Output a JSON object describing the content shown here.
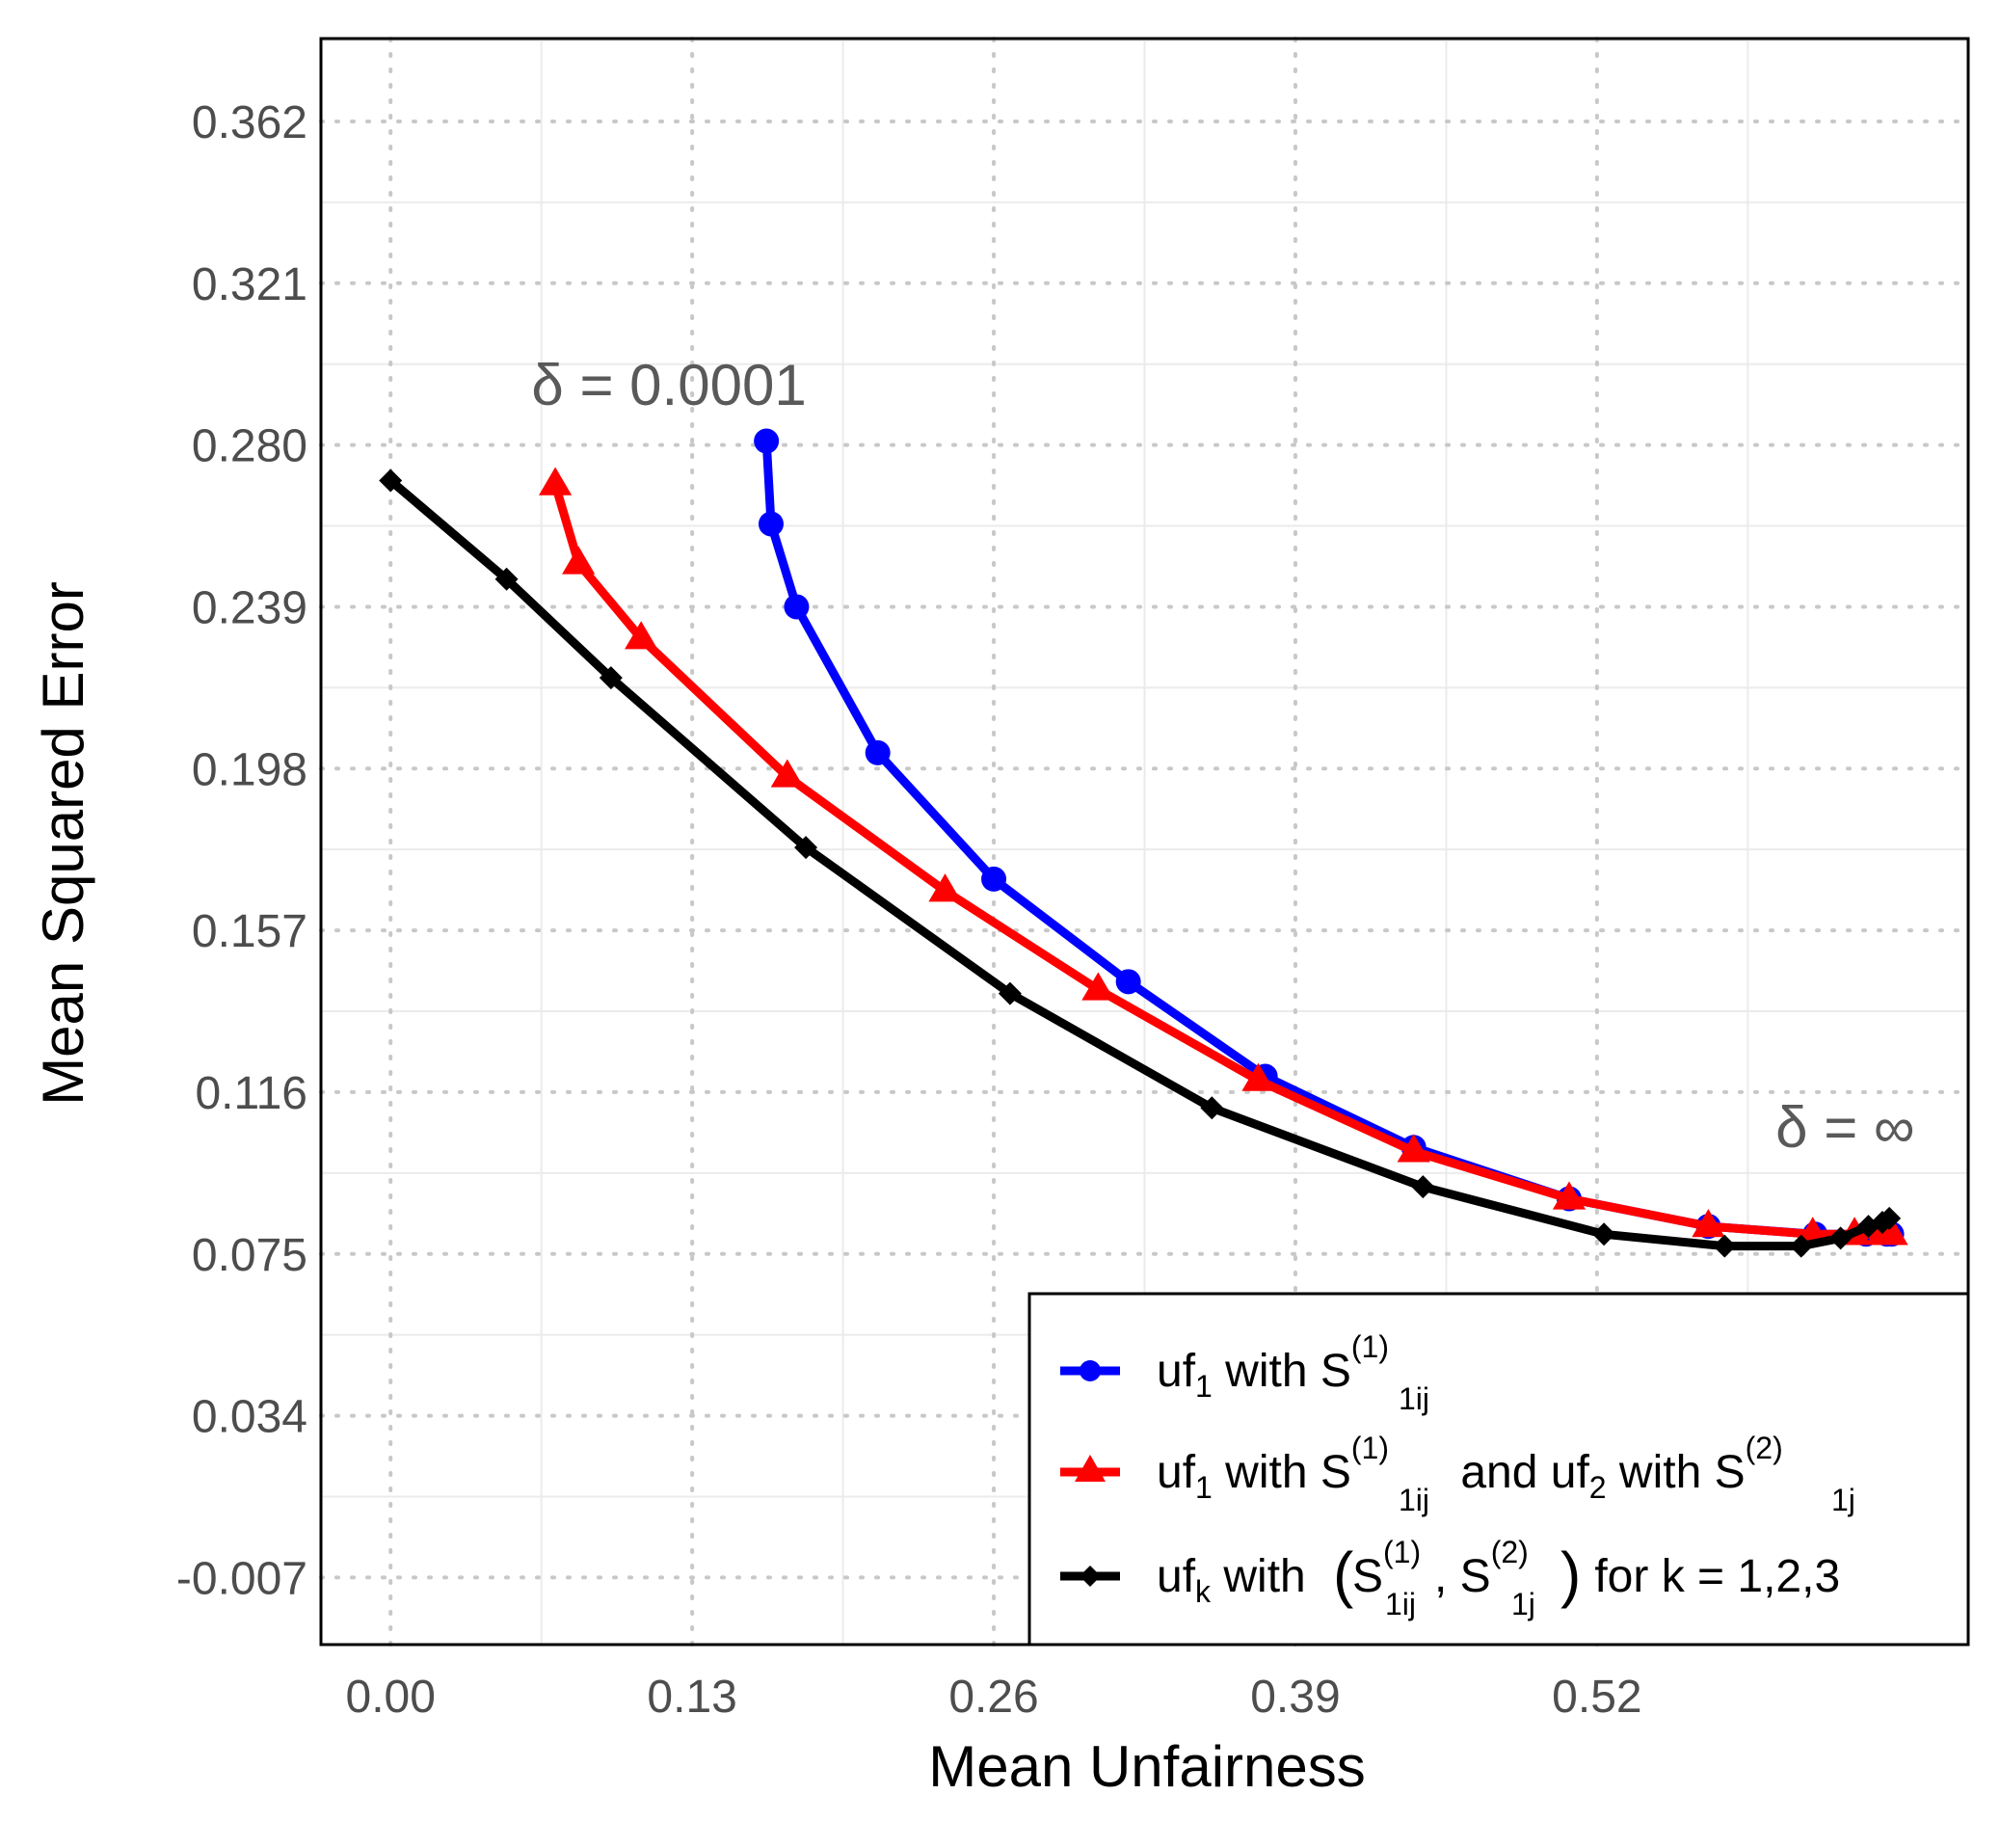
{
  "chart_data": {
    "type": "line",
    "xlabel": "Mean Unfairness",
    "ylabel": "Mean Squared Error",
    "xlim": [
      -0.03,
      0.68
    ],
    "ylim": [
      -0.024,
      0.383
    ],
    "x_ticks": [
      "0.00",
      "0.13",
      "0.26",
      "0.39",
      "0.52"
    ],
    "x_tick_values": [
      0.0,
      0.13,
      0.26,
      0.39,
      0.52
    ],
    "y_ticks": [
      "-0.007",
      "0.034",
      "0.075",
      "0.116",
      "0.157",
      "0.198",
      "0.239",
      "0.280",
      "0.321",
      "0.362"
    ],
    "y_tick_values": [
      -0.007,
      0.034,
      0.075,
      0.116,
      0.157,
      0.198,
      0.239,
      0.28,
      0.321,
      0.362
    ],
    "grid": true,
    "legend_position": "bottom-right",
    "annotations": [
      {
        "text": "δ = 0.0001",
        "x": 0.12,
        "y": 0.295
      },
      {
        "text": "δ = ∞",
        "x": 0.627,
        "y": 0.107
      }
    ],
    "series": [
      {
        "legend": {
          "prefix": "uf",
          "sub1": "1",
          "text1": " with S",
          "sup2": "(1)",
          "sub2": "1ij"
        },
        "color": "#0000ff",
        "marker": "circle",
        "x": [
          0.162,
          0.164,
          0.175,
          0.21,
          0.26,
          0.318,
          0.377,
          0.441,
          0.508,
          0.568,
          0.614,
          0.636,
          0.645,
          0.647
        ],
        "y": [
          0.281,
          0.26,
          0.239,
          0.202,
          0.17,
          0.144,
          0.12,
          0.102,
          0.089,
          0.082,
          0.08,
          0.08,
          0.08,
          0.08
        ]
      },
      {
        "legend": {
          "prefix": "uf",
          "sub1": "1",
          "text1": " with S",
          "sup2": "(1)",
          "sub2": "1ij",
          "text2": " and uf",
          "sub3": "2",
          "text3": " with S",
          "sup4": "(2)",
          "sub4": "1j"
        },
        "color": "#ff0000",
        "marker": "triangle",
        "x": [
          0.071,
          0.081,
          0.108,
          0.171,
          0.239,
          0.305,
          0.374,
          0.441,
          0.508,
          0.568,
          0.613,
          0.631,
          0.643,
          0.647
        ],
        "y": [
          0.27,
          0.25,
          0.231,
          0.196,
          0.167,
          0.142,
          0.119,
          0.101,
          0.089,
          0.082,
          0.08,
          0.08,
          0.08,
          0.08
        ]
      },
      {
        "legend": {
          "prefix": "uf",
          "sub1": "k",
          "text1": " with ",
          "paren": true,
          "p1": "S",
          "sup2": "(1)",
          "sub2": "1ij",
          "p2": ", S",
          "sup3": "(2)",
          "sub3": "1j",
          "text3": " for k = 1,2,3"
        },
        "color": "#000000",
        "marker": "diamond",
        "x": [
          0.0,
          0.05,
          0.095,
          0.179,
          0.267,
          0.354,
          0.445,
          0.523,
          0.575,
          0.608,
          0.625,
          0.637,
          0.643,
          0.646
        ],
        "y": [
          0.271,
          0.246,
          0.221,
          0.178,
          0.141,
          0.112,
          0.092,
          0.08,
          0.077,
          0.077,
          0.079,
          0.082,
          0.083,
          0.084
        ]
      }
    ]
  }
}
